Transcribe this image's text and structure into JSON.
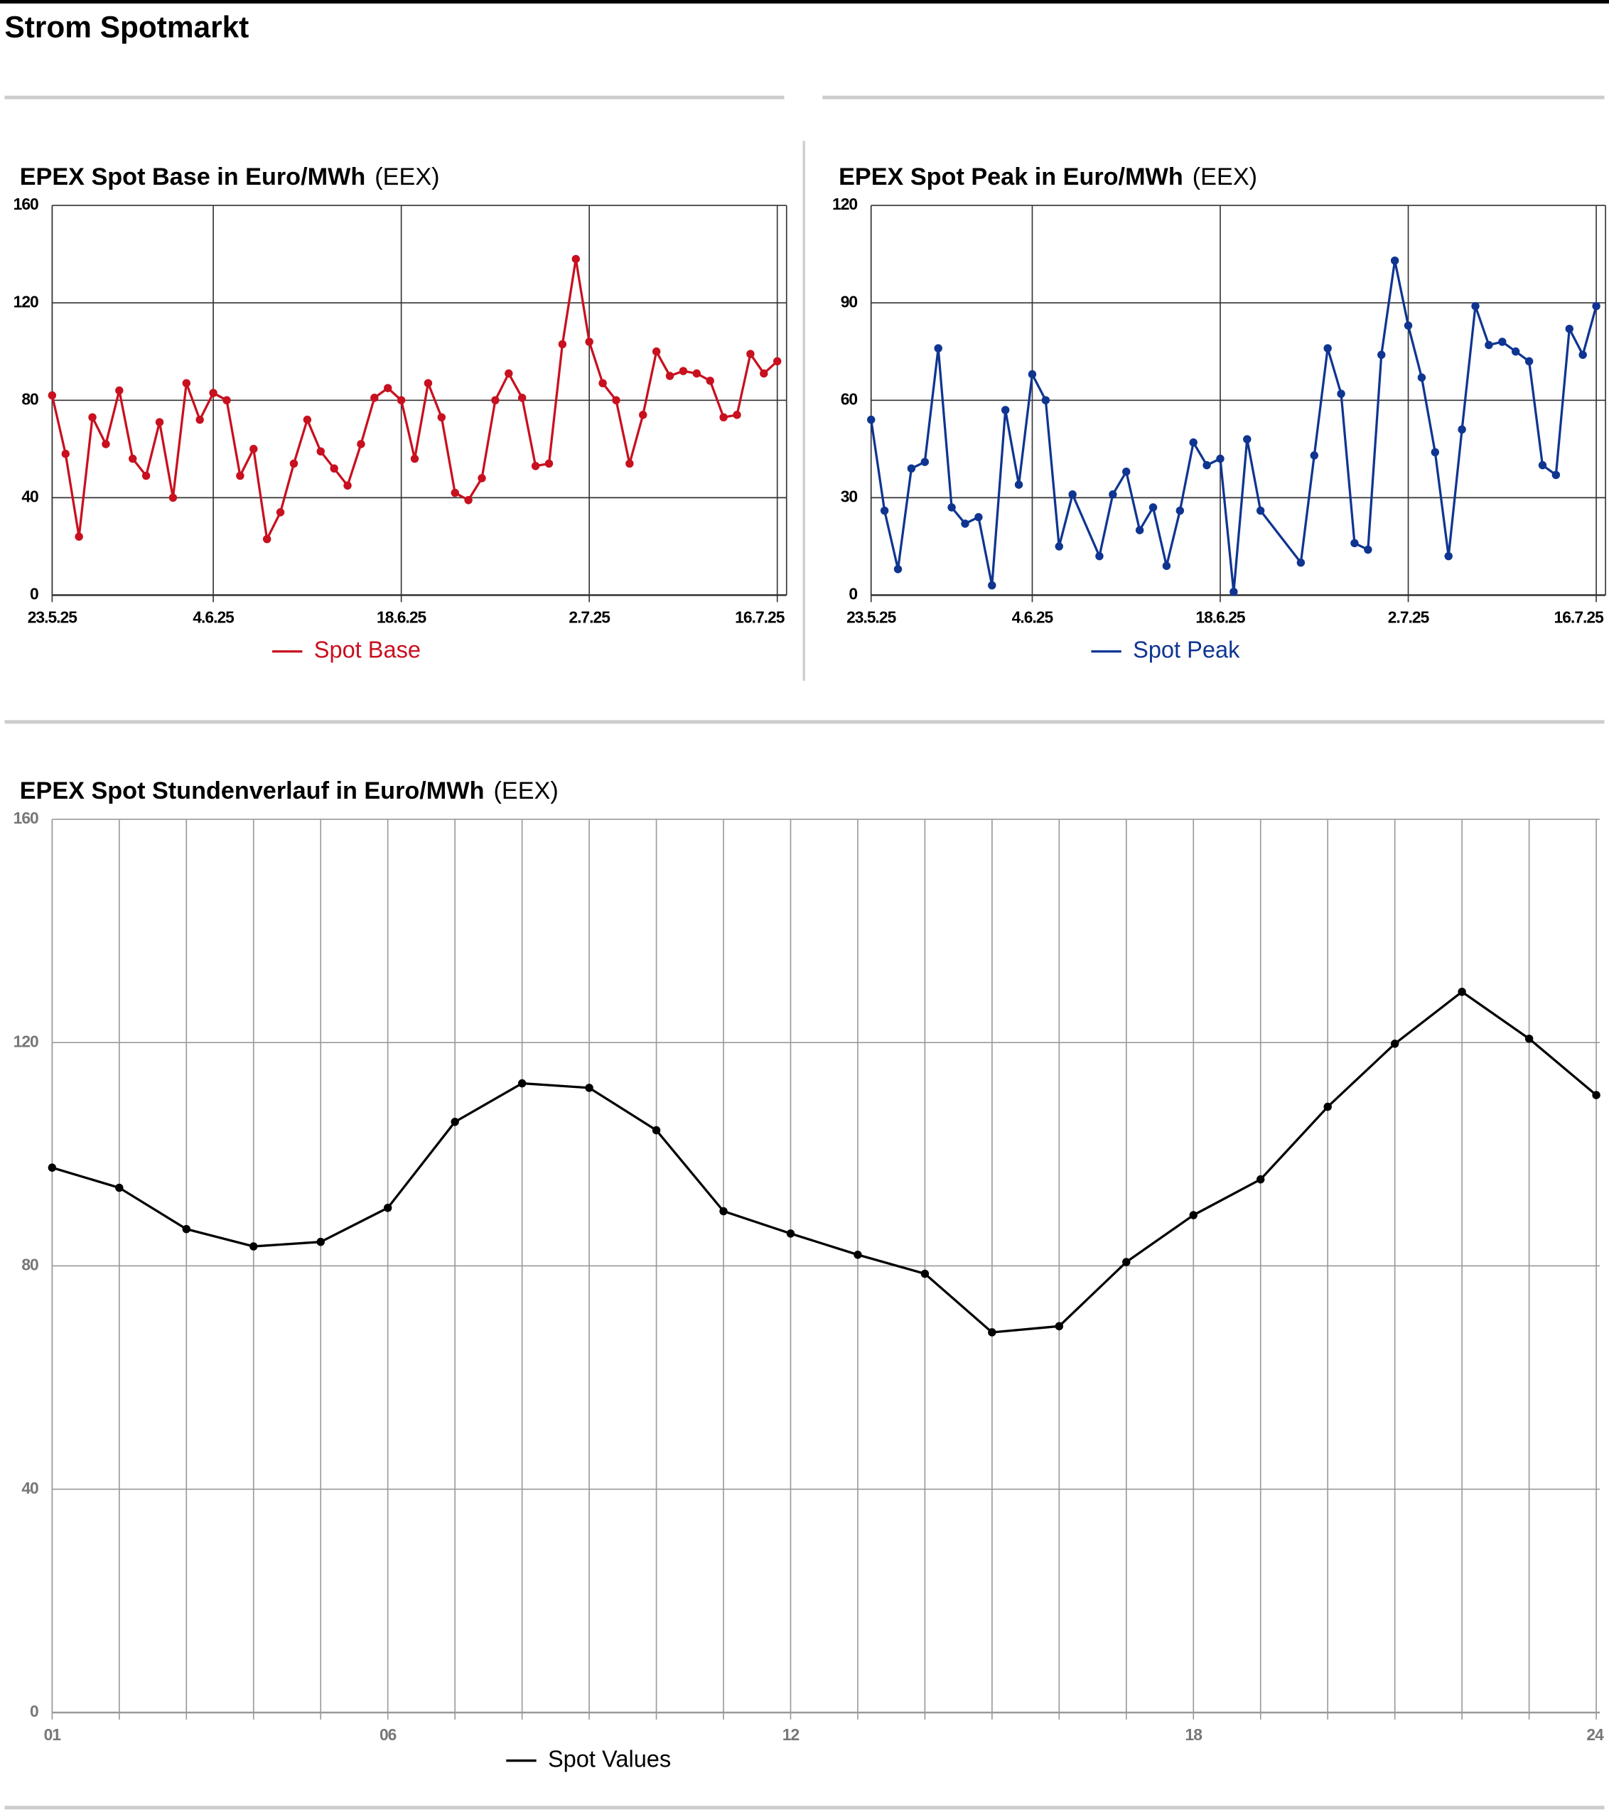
{
  "title": "Strom Spotmarkt",
  "chart_data": [
    {
      "type": "line",
      "title": "EPEX Spot Base in Euro/MWh",
      "source": "(EEX)",
      "x": [
        "23.5.25",
        "24.5.25",
        "25.5.25",
        "26.5.25",
        "27.5.25",
        "28.5.25",
        "29.5.25",
        "30.5.25",
        "31.5.25",
        "1.6.25",
        "2.6.25",
        "3.6.25",
        "4.6.25",
        "5.6.25",
        "6.6.25",
        "7.6.25",
        "8.6.25",
        "9.6.25",
        "10.6.25",
        "11.6.25",
        "12.6.25",
        "13.6.25",
        "14.6.25",
        "15.6.25",
        "16.6.25",
        "17.6.25",
        "18.6.25",
        "19.6.25",
        "20.6.25",
        "21.6.25",
        "22.6.25",
        "23.6.25",
        "24.6.25",
        "25.6.25",
        "26.6.25",
        "27.6.25",
        "28.6.25",
        "29.6.25",
        "30.6.25",
        "1.7.25",
        "2.7.25",
        "3.7.25",
        "4.7.25",
        "5.7.25",
        "6.7.25",
        "7.7.25",
        "8.7.25",
        "9.7.25",
        "10.7.25",
        "11.7.25",
        "12.7.25",
        "13.7.25",
        "14.7.25",
        "15.7.25",
        "16.7.25"
      ],
      "series": [
        {
          "name": "Spot Base",
          "color": "#c8101f",
          "values": [
            82,
            58,
            24,
            73,
            62,
            84,
            56,
            49,
            71,
            40,
            87,
            72,
            83,
            80,
            49,
            60,
            23,
            34,
            54,
            72,
            59,
            52,
            45,
            62,
            81,
            85,
            80,
            56,
            87,
            73,
            42,
            39,
            48,
            80,
            91,
            81,
            53,
            54,
            103,
            138,
            104,
            87,
            80,
            54,
            74,
            100,
            90,
            92,
            91,
            88,
            73,
            74,
            99,
            91,
            96
          ]
        }
      ],
      "xlim": [
        "23.5.25",
        "16.7.25"
      ],
      "xticks": [
        "23.5.25",
        "4.6.25",
        "18.6.25",
        "2.7.25",
        "16.7.25"
      ],
      "ylim": [
        0,
        160
      ],
      "yticks": [
        0,
        40,
        80,
        120,
        160
      ],
      "grid": true
    },
    {
      "type": "line",
      "title": "EPEX Spot Peak in Euro/MWh",
      "source": "(EEX)",
      "x": [
        "23.5.25",
        "24.5.25",
        "25.5.25",
        "26.5.25",
        "27.5.25",
        "28.5.25",
        "29.5.25",
        "30.5.25",
        "31.5.25",
        "1.6.25",
        "2.6.25",
        "3.6.25",
        "4.6.25",
        "5.6.25",
        "6.6.25",
        "7.6.25",
        "9.6.25",
        "10.6.25",
        "11.6.25",
        "12.6.25",
        "13.6.25",
        "14.6.25",
        "15.6.25",
        "16.6.25",
        "17.6.25",
        "18.6.25",
        "19.6.25",
        "20.6.25",
        "21.6.25",
        "24.6.25",
        "25.6.25",
        "26.6.25",
        "27.6.25",
        "28.6.25",
        "29.6.25",
        "30.6.25",
        "1.7.25",
        "2.7.25",
        "3.7.25",
        "4.7.25",
        "5.7.25",
        "6.7.25",
        "7.7.25",
        "8.7.25",
        "9.7.25",
        "10.7.25",
        "11.7.25",
        "12.7.25",
        "13.7.25",
        "14.7.25",
        "15.7.25",
        "16.7.25"
      ],
      "series": [
        {
          "name": "Spot Peak",
          "color": "#0f3591",
          "values": [
            54,
            26,
            8,
            39,
            41,
            76,
            27,
            22,
            24,
            3,
            57,
            34,
            68,
            60,
            15,
            31,
            12,
            31,
            38,
            20,
            27,
            9,
            26,
            47,
            40,
            42,
            1,
            48,
            26,
            10,
            43,
            76,
            62,
            16,
            14,
            74,
            103,
            83,
            67,
            44,
            12,
            51,
            89,
            77,
            78,
            75,
            72,
            40,
            37,
            82,
            74,
            89
          ]
        }
      ],
      "xlim": [
        "23.5.25",
        "16.7.25"
      ],
      "xticks": [
        "23.5.25",
        "4.6.25",
        "18.6.25",
        "2.7.25",
        "16.7.25"
      ],
      "ylim": [
        0,
        120
      ],
      "yticks": [
        0,
        30,
        60,
        90,
        120
      ],
      "grid": true
    },
    {
      "type": "line",
      "title": "EPEX Spot Stundenverlauf in Euro/MWh",
      "source": "(EEX)",
      "x": [
        1,
        2,
        3,
        4,
        5,
        6,
        7,
        8,
        9,
        10,
        11,
        12,
        13,
        14,
        15,
        16,
        17,
        18,
        19,
        20,
        21,
        22,
        23,
        24
      ],
      "series": [
        {
          "name": "Spot Values",
          "color": "#000000",
          "values": [
            97.6,
            94,
            86.6,
            83.5,
            84.3,
            90.4,
            105.8,
            112.7,
            111.9,
            104.3,
            89.8,
            85.8,
            82,
            78.6,
            68.1,
            69.2,
            80.7,
            89.1,
            95.5,
            108.5,
            119.8,
            129.1,
            120.7,
            110.6
          ]
        }
      ],
      "xlim": [
        1,
        24
      ],
      "xticks": [
        {
          "value": 1,
          "label": "01"
        },
        {
          "value": 6,
          "label": "06"
        },
        12,
        18,
        24
      ],
      "ylim": [
        0,
        160
      ],
      "yticks": [
        0,
        40,
        80,
        120,
        160
      ],
      "grid": true
    }
  ]
}
